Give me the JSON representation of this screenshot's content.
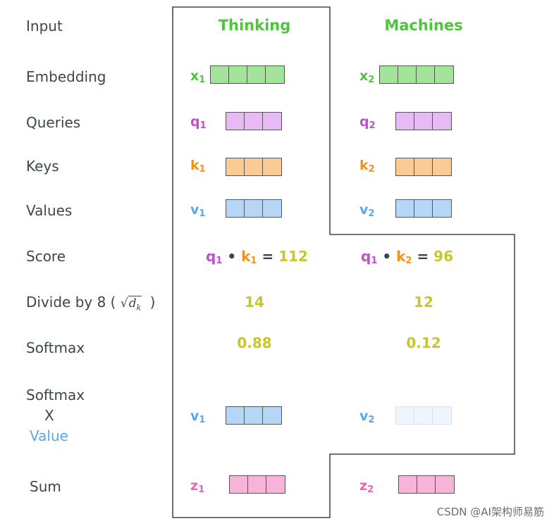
{
  "row_labels": {
    "input": "Input",
    "embedding": "Embedding",
    "queries": "Queries",
    "keys": "Keys",
    "values": "Values",
    "score": "Score",
    "divide_prefix": "Divide by 8 (",
    "divide_sqrt": "√",
    "divide_dk": "d",
    "divide_k": "k",
    "divide_suffix": ")",
    "softmax": "Softmax",
    "softmax_value_1": "Softmax",
    "softmax_value_2": "X",
    "softmax_value_3": "Value",
    "sum": "Sum"
  },
  "words": [
    "Thinking",
    "Machines"
  ],
  "columns": [
    {
      "x": {
        "name": "x",
        "sub": "1"
      },
      "q": {
        "name": "q",
        "sub": "1"
      },
      "k": {
        "name": "k",
        "sub": "1"
      },
      "v": {
        "name": "v",
        "sub": "1"
      },
      "score": {
        "q": "q",
        "q_sub": "1",
        "dot": "•",
        "k": "k",
        "k_sub": "1",
        "eq": "=",
        "value": "112"
      },
      "divided": "14",
      "softmax": "0.88",
      "weighted_v": {
        "name": "v",
        "sub": "1"
      },
      "z": {
        "name": "z",
        "sub": "1"
      }
    },
    {
      "x": {
        "name": "x",
        "sub": "2"
      },
      "q": {
        "name": "q",
        "sub": "2"
      },
      "k": {
        "name": "k",
        "sub": "2"
      },
      "v": {
        "name": "v",
        "sub": "2"
      },
      "score": {
        "q": "q",
        "q_sub": "1",
        "dot": "•",
        "k": "k",
        "k_sub": "2",
        "eq": "=",
        "value": "96"
      },
      "divided": "12",
      "softmax": "0.12",
      "weighted_v": {
        "name": "v",
        "sub": "2"
      },
      "z": {
        "name": "z",
        "sub": "2"
      }
    }
  ],
  "colors": {
    "embedding": "#a3e49b",
    "query": "#e7b9f5",
    "key": "#fbcb95",
    "value": "#b5d6f7",
    "value_faded": "#eef5fd",
    "sum": "#f6b4d9",
    "word": "#4fc53c",
    "number": "#c9c626"
  },
  "watermark": "CSDN @AI架构师易筋"
}
